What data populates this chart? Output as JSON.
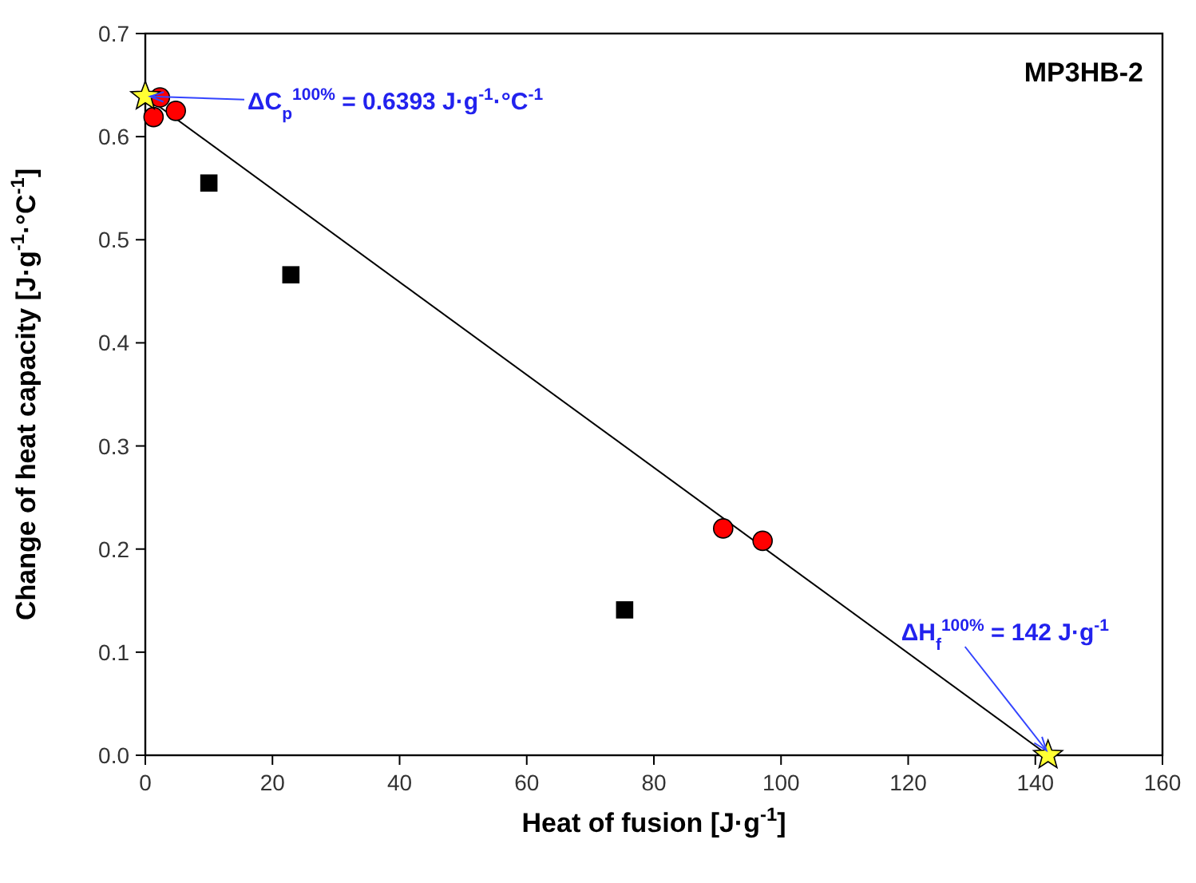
{
  "chart_data": {
    "type": "scatter",
    "title": "MP3HB-2",
    "xlabel": "Heat of fusion [J·g$^{-1}$]",
    "ylabel": "Change of heat capacity [J·g$^{-1}$·°C$^{-1}$]",
    "xlim": [
      0,
      160
    ],
    "xticks": [
      0,
      20,
      40,
      60,
      80,
      100,
      120,
      140,
      160
    ],
    "ylim": [
      0,
      0.7
    ],
    "yticks": [
      {
        "value": 0,
        "label": "0.0"
      },
      {
        "value": 0.1,
        "label": "0.1"
      },
      {
        "value": 0.2,
        "label": "0.2"
      },
      {
        "value": 0.3,
        "label": "0.3"
      },
      {
        "value": 0.4,
        "label": "0.4"
      },
      {
        "value": 0.5,
        "label": "0.5"
      },
      {
        "value": 0.6,
        "label": "0.6"
      },
      {
        "value": 0.7,
        "label": "0.7"
      }
    ],
    "grid": false,
    "series": [
      {
        "type": "line",
        "color": "#000000",
        "marker": "none",
        "line_style": "solid",
        "x": [
          0,
          142
        ],
        "values": [
          0.639,
          0
        ]
      },
      {
        "color": "#ff0000",
        "marker": "circle",
        "x": [
          1.3,
          2.3,
          4.8,
          90.9,
          97.1
        ],
        "values": [
          0.619,
          0.638,
          0.625,
          0.22,
          0.208
        ]
      },
      {
        "color": "#000000",
        "marker": "square",
        "x": [
          10,
          22.9,
          75.4
        ],
        "values": [
          0.555,
          0.466,
          0.141
        ]
      },
      {
        "color": "#ffff33",
        "marker": "star",
        "x": [
          0,
          142
        ],
        "values": [
          0.639,
          0
        ]
      }
    ],
    "annotations": [
      {
        "text": "ΔC$_{p}$$^{100%}$ = 0.6393 J·g$^{-1}$·°C$^{-1}$",
        "x": 0,
        "y": 0.639
      },
      {
        "text": "ΔH$_{f}$$^{100%}$ = 142 J·g$^{-1}$",
        "x": 142,
        "y": 0
      }
    ]
  }
}
